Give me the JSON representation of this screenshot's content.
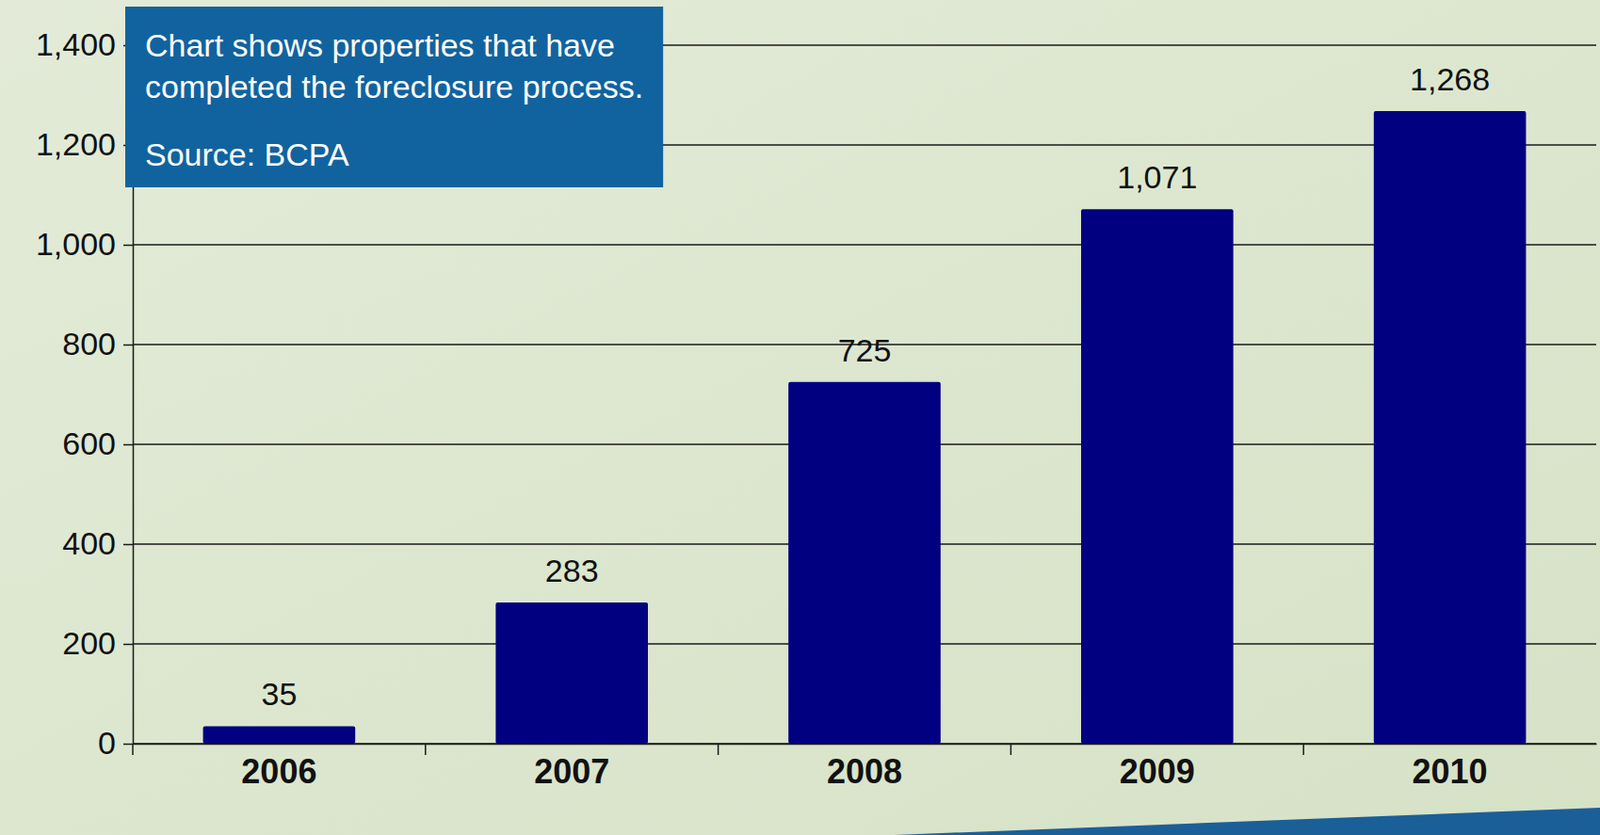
{
  "chart_data": {
    "type": "bar",
    "annotations": [
      "Chart shows properties that have completed the foreclosure process.",
      "Source: BCPA"
    ],
    "categories": [
      "2006",
      "2007",
      "2008",
      "2009",
      "2010"
    ],
    "values": [
      35,
      283,
      725,
      1071,
      1268
    ],
    "value_labels": [
      "35",
      "283",
      "725",
      "1,071",
      "1,268"
    ],
    "data_labels": true,
    "color": "#000080",
    "ylim": [
      0,
      1400
    ],
    "yticks": [
      0,
      200,
      400,
      600,
      800,
      {
        "value": 1000,
        "label": "1,000"
      },
      {
        "value": 1200,
        "label": "1,200"
      },
      {
        "value": 1400,
        "label": "1,400"
      }
    ],
    "grid": true
  }
}
